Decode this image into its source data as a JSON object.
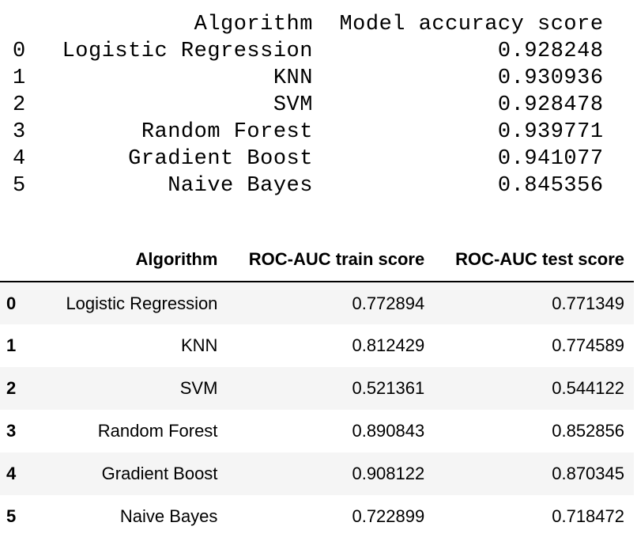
{
  "accuracy_table": {
    "headers": {
      "algorithm": "Algorithm",
      "accuracy": "Model accuracy score"
    },
    "rows": [
      {
        "index": "0",
        "algorithm": "Logistic Regression",
        "accuracy": "0.928248"
      },
      {
        "index": "1",
        "algorithm": "KNN",
        "accuracy": "0.930936"
      },
      {
        "index": "2",
        "algorithm": "SVM",
        "accuracy": "0.928478"
      },
      {
        "index": "3",
        "algorithm": "Random Forest",
        "accuracy": "0.939771"
      },
      {
        "index": "4",
        "algorithm": "Gradient Boost",
        "accuracy": "0.941077"
      },
      {
        "index": "5",
        "algorithm": "Naive Bayes",
        "accuracy": "0.845356"
      }
    ]
  },
  "roc_auc_table": {
    "headers": {
      "algorithm": "Algorithm",
      "train": "ROC-AUC train score",
      "test": "ROC-AUC test score"
    },
    "rows": [
      {
        "index": "0",
        "algorithm": "Logistic Regression",
        "train": "0.772894",
        "test": "0.771349"
      },
      {
        "index": "1",
        "algorithm": "KNN",
        "train": "0.812429",
        "test": "0.774589"
      },
      {
        "index": "2",
        "algorithm": "SVM",
        "train": "0.521361",
        "test": "0.544122"
      },
      {
        "index": "3",
        "algorithm": "Random Forest",
        "train": "0.890843",
        "test": "0.852856"
      },
      {
        "index": "4",
        "algorithm": "Gradient Boost",
        "train": "0.908122",
        "test": "0.870345"
      },
      {
        "index": "5",
        "algorithm": "Naive Bayes",
        "train": "0.722899",
        "test": "0.718472"
      }
    ]
  }
}
